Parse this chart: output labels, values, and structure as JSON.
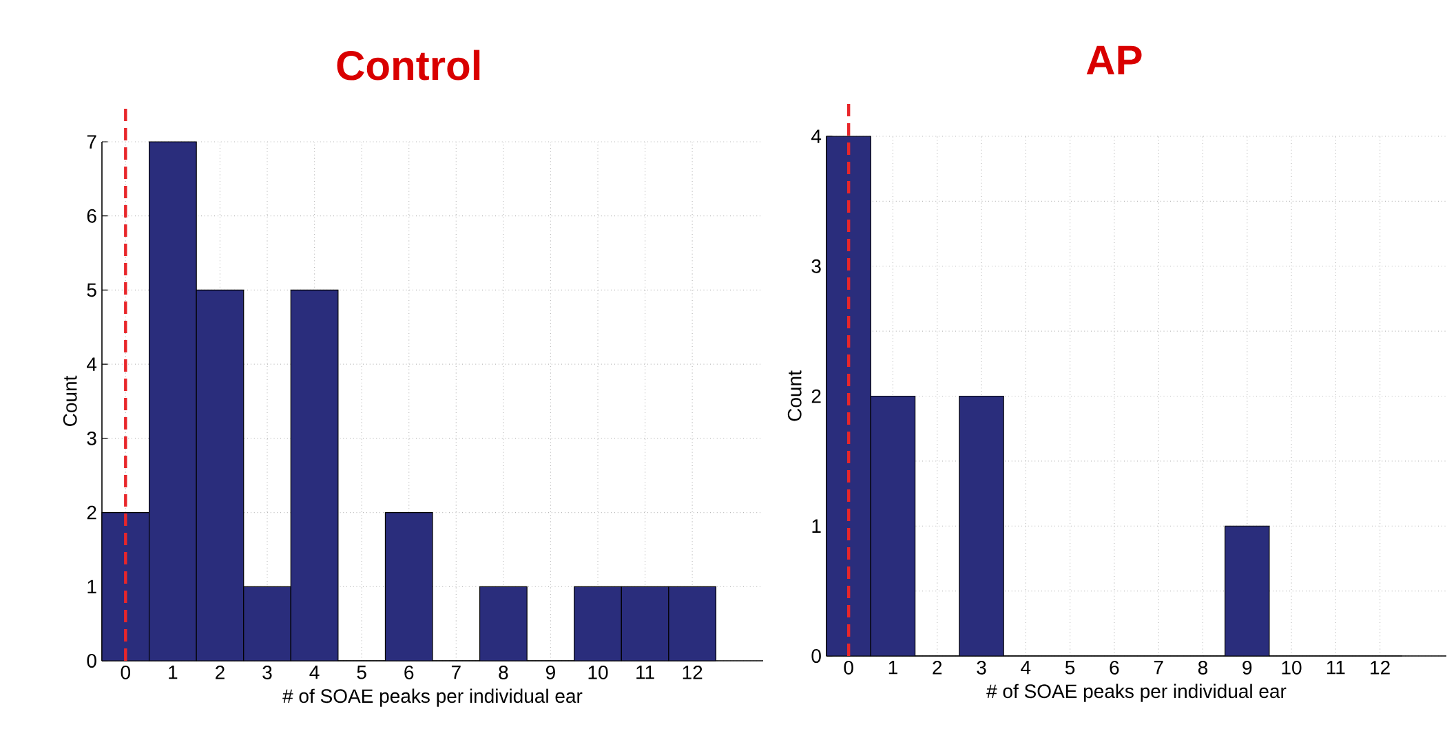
{
  "chart_data": [
    {
      "type": "histogram",
      "title": "Control",
      "xlabel": "# of SOAE peaks per individual ear",
      "ylabel": "Count",
      "bins": [
        -0.5,
        0.5,
        1.5,
        2.5,
        3.5,
        4.5,
        5.5,
        6.5,
        7.5,
        8.5,
        9.5,
        10.5,
        11.5,
        12.5
      ],
      "values": [
        2,
        7,
        5,
        1,
        5,
        0,
        2,
        0,
        1,
        0,
        1,
        1,
        1
      ],
      "color": "#2a2d7c",
      "xlim": [
        -0.5,
        13.5
      ],
      "ylim": [
        0,
        7
      ],
      "xticks": [
        0,
        1,
        2,
        3,
        4,
        5,
        6,
        7,
        8,
        9,
        10,
        11,
        12
      ],
      "yticks": [
        0,
        1,
        2,
        3,
        4,
        5,
        6,
        7
      ],
      "grid": true,
      "ref_lines": [
        {
          "axis": "x",
          "value": 0,
          "color": "#e8262a",
          "line_style": "dashed"
        }
      ]
    },
    {
      "type": "histogram",
      "title": "AP",
      "xlabel": "# of SOAE peaks per individual ear",
      "ylabel": "Count",
      "bins": [
        -0.5,
        0.5,
        1.5,
        2.5,
        3.5,
        4.5,
        5.5,
        6.5,
        7.5,
        8.5,
        9.5,
        10.5,
        11.5,
        12.5
      ],
      "values": [
        4,
        2,
        0,
        2,
        0,
        0,
        0,
        0,
        0,
        1,
        0,
        0,
        0
      ],
      "color": "#2a2d7c",
      "xlim": [
        -0.5,
        13.5
      ],
      "ylim": [
        0,
        4
      ],
      "xticks": [
        0,
        1,
        2,
        3,
        4,
        5,
        6,
        7,
        8,
        9,
        10,
        11,
        12
      ],
      "yticks": [
        0,
        {
          "value": 0.5,
          "label": null
        },
        1,
        {
          "value": 1.5,
          "label": null
        },
        2,
        {
          "value": 2.5,
          "label": null
        },
        3,
        {
          "value": 3.5,
          "label": null
        },
        4
      ],
      "grid": true,
      "ref_lines": [
        {
          "axis": "x",
          "value": 0,
          "color": "#e8262a",
          "line_style": "dashed"
        }
      ]
    }
  ]
}
